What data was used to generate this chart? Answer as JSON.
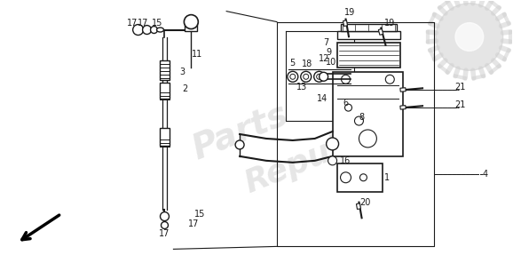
{
  "background_color": "#ffffff",
  "watermark_text": "Parts Republic",
  "watermark_color": "#bbbbbb",
  "watermark_alpha": 0.35,
  "gear_color": "#cccccc",
  "line_color": "#1a1a1a",
  "label_color": "#1a1a1a",
  "arrow_color": "#000000",
  "figsize": [
    5.78,
    2.96
  ],
  "dpi": 100
}
